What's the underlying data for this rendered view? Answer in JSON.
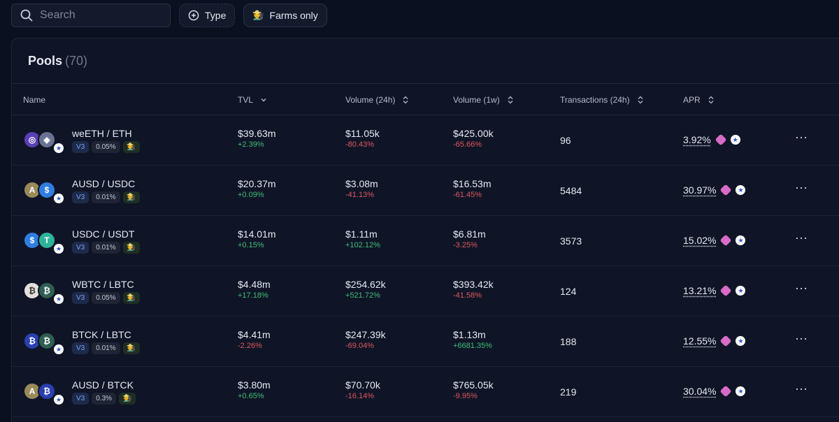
{
  "search": {
    "placeholder": "Search"
  },
  "filters": {
    "type_label": "Type",
    "farms_label": "Farms only",
    "farm_icon": "🧑‍🌾"
  },
  "pools": {
    "title": "Pools",
    "count": "(70)",
    "columns": {
      "name": "Name",
      "tvl": "TVL",
      "vol24": "Volume (24h)",
      "vol1w": "Volume (1w)",
      "tx": "Transactions (24h)",
      "apr": "APR"
    },
    "rows": [
      {
        "pair": "weETH / ETH",
        "version": "V3",
        "fee": "0.05%",
        "tvl": "$39.63m",
        "tvl_chg": "+2.39%",
        "vol24": "$11.05k",
        "vol24_chg": "-80.43%",
        "vol1w": "$425.00k",
        "vol1w_chg": "-65.66%",
        "tx": "96",
        "apr": "3.92%",
        "t1": "◎",
        "t2": "◆",
        "c1": "#5b3fb6",
        "c2": "#6a7391"
      },
      {
        "pair": "AUSD / USDC",
        "version": "V3",
        "fee": "0.01%",
        "tvl": "$20.37m",
        "tvl_chg": "+0.09%",
        "vol24": "$3.08m",
        "vol24_chg": "-41.13%",
        "vol1w": "$16.53m",
        "vol1w_chg": "-61.45%",
        "tx": "5484",
        "apr": "30.97%",
        "t1": "A",
        "t2": "$",
        "c1": "#9a8a5a",
        "c2": "#2f7de1"
      },
      {
        "pair": "USDC / USDT",
        "version": "V3",
        "fee": "0.01%",
        "tvl": "$14.01m",
        "tvl_chg": "+0.15%",
        "vol24": "$1.11m",
        "vol24_chg": "+102.12%",
        "vol1w": "$6.81m",
        "vol1w_chg": "-3.25%",
        "tx": "3573",
        "apr": "15.02%",
        "t1": "$",
        "t2": "T",
        "c1": "#2f7de1",
        "c2": "#2eb39b"
      },
      {
        "pair": "WBTC / LBTC",
        "version": "V3",
        "fee": "0.05%",
        "tvl": "$4.48m",
        "tvl_chg": "+17.18%",
        "vol24": "$254.62k",
        "vol24_chg": "+521.72%",
        "vol1w": "$393.42k",
        "vol1w_chg": "-41.58%",
        "tx": "124",
        "apr": "13.21%",
        "t1": "₿",
        "t2": "₿",
        "c1": "#e4e0dc",
        "c2": "#2e5f52"
      },
      {
        "pair": "BTCK / LBTC",
        "version": "V3",
        "fee": "0.01%",
        "tvl": "$4.41m",
        "tvl_chg": "-2.26%",
        "vol24": "$247.39k",
        "vol24_chg": "-69.04%",
        "vol1w": "$1.13m",
        "vol1w_chg": "+6681.35%",
        "tx": "188",
        "apr": "12.55%",
        "t1": "₿",
        "t2": "₿",
        "c1": "#2a3fb0",
        "c2": "#2e5f52"
      },
      {
        "pair": "AUSD / BTCK",
        "version": "V3",
        "fee": "0.3%",
        "tvl": "$3.80m",
        "tvl_chg": "+0.65%",
        "vol24": "$70.70k",
        "vol24_chg": "-16.14%",
        "vol1w": "$765.05k",
        "vol1w_chg": "-9.95%",
        "tx": "219",
        "apr": "30.04%",
        "t1": "A",
        "t2": "₿",
        "c1": "#9a8a5a",
        "c2": "#2a3fb0"
      }
    ]
  }
}
